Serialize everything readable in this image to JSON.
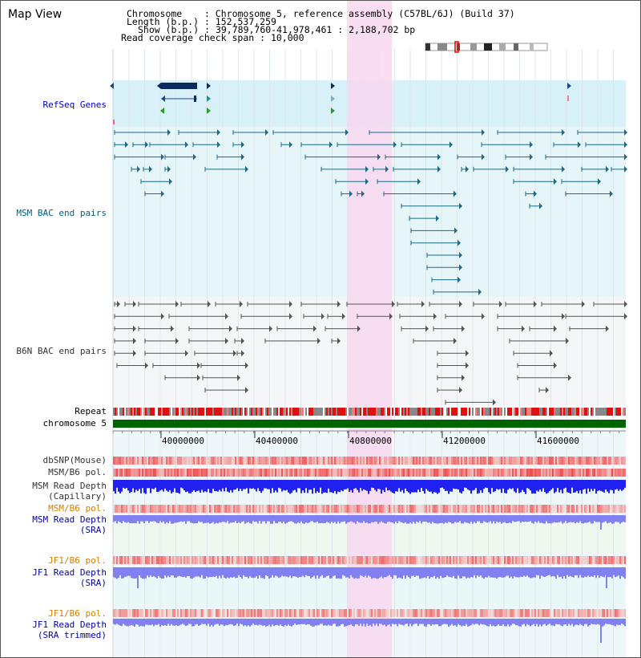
{
  "header": {
    "title": "Map View",
    "chromosome_label": "Chromosome",
    "chromosome_value": "Chromosome 5, reference assembly (C57BL/6J) (Build 37)",
    "length_label": "Length (b.p.)",
    "length_value": "152,537,259",
    "show_label": "Show (b.p.)",
    "show_value": "39,789,760-41,978,461 : 2,188,702 bp",
    "coverage_label": "Read coverage check span",
    "coverage_value": "10,000"
  },
  "tracks": {
    "refseq": "RefSeq Genes",
    "msm_bac": "MSM BAC end pairs",
    "b6n_bac": "B6N BAC end pairs",
    "repeat": "Repeat",
    "chromosome": "chromosome 5",
    "dbsnp": "dbSNP(Mouse)",
    "msm_b6_pol_1": "MSM/B6 pol.",
    "msm_depth_cap_1": "MSM Read Depth",
    "msm_depth_cap_2": "(Capillary)",
    "msm_b6_pol_2": "MSM/B6 pol.",
    "msm_depth_sra_1": "MSM Read Depth",
    "msm_depth_sra_2": "(SRA)",
    "jf1_pol_1": "JF1/B6 pol.",
    "jf1_depth_sra_1": "JF1 Read Depth",
    "jf1_depth_sra_2": "(SRA)",
    "jf1_pol_2": "JF1/B6 pol.",
    "jf1_depth_trim_1": "JF1 Read Depth",
    "jf1_depth_trim_2": "(SRA trimmed)"
  },
  "ruler": {
    "ticks": [
      "40000000",
      "40400000",
      "40800000",
      "41200000",
      "41600000"
    ]
  },
  "colors": {
    "refseq_label": "#0000cc",
    "msm_label": "#006080",
    "b6n_label": "#333333",
    "msm_bac": "#1a6a8a",
    "b6n_bac": "#555555",
    "highlight": "#f8d8f0",
    "refseq_bg": "#d8f0f8",
    "chromosome_bar": "#006400",
    "depth_blue": "#2020f0",
    "depth_light_blue": "#8080f0",
    "orange_label": "#d08000"
  }
}
